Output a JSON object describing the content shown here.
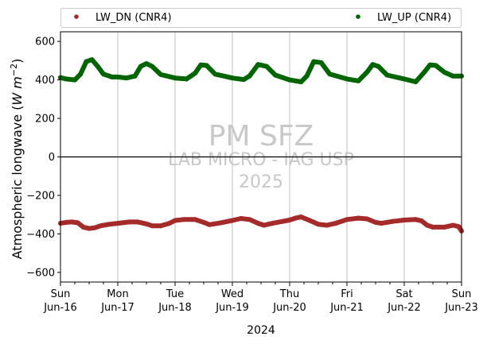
{
  "chart_data": {
    "type": "line",
    "ylabel_main": "Atmospheric longwave (",
    "ylabel_unit": "W m",
    "ylabel_exp": "−2",
    "ylabel_close": ")",
    "xlabel": "2024",
    "ylim": [
      -650,
      650
    ],
    "xlim": [
      0,
      7
    ],
    "yticks": [
      -600,
      -400,
      -200,
      0,
      200,
      400,
      600
    ],
    "ytick_labels": [
      "−600",
      "−400",
      "−200",
      "0",
      "200",
      "400",
      "600"
    ],
    "xticks": [
      {
        "x": 0,
        "day": "Sun",
        "date": "Jun-16"
      },
      {
        "x": 1,
        "day": "Mon",
        "date": "Jun-17"
      },
      {
        "x": 2,
        "day": "Tue",
        "date": "Jun-18"
      },
      {
        "x": 3,
        "day": "Wed",
        "date": "Jun-19"
      },
      {
        "x": 4,
        "day": "Thu",
        "date": "Jun-20"
      },
      {
        "x": 5,
        "day": "Fri",
        "date": "Jun-21"
      },
      {
        "x": 6,
        "day": "Sat",
        "date": "Jun-22"
      },
      {
        "x": 7,
        "day": "Sun",
        "date": "Jun-23"
      }
    ],
    "grid": "vertical",
    "legend_placement": "top, outside",
    "watermark": [
      "PM SFZ",
      "LAB MICRO - IAG USP",
      "2025"
    ],
    "series": [
      {
        "name": "LW_DN (CNR4)",
        "color": "#a52a2a",
        "points": [
          [
            0.0,
            -345
          ],
          [
            0.1,
            -340
          ],
          [
            0.2,
            -338
          ],
          [
            0.3,
            -342
          ],
          [
            0.4,
            -365
          ],
          [
            0.5,
            -372
          ],
          [
            0.6,
            -368
          ],
          [
            0.7,
            -358
          ],
          [
            0.85,
            -350
          ],
          [
            1.0,
            -345
          ],
          [
            1.2,
            -338
          ],
          [
            1.35,
            -338
          ],
          [
            1.5,
            -348
          ],
          [
            1.6,
            -358
          ],
          [
            1.75,
            -358
          ],
          [
            1.9,
            -345
          ],
          [
            2.0,
            -330
          ],
          [
            2.15,
            -325
          ],
          [
            2.35,
            -325
          ],
          [
            2.5,
            -340
          ],
          [
            2.6,
            -352
          ],
          [
            2.8,
            -342
          ],
          [
            3.0,
            -330
          ],
          [
            3.15,
            -320
          ],
          [
            3.3,
            -325
          ],
          [
            3.45,
            -345
          ],
          [
            3.55,
            -355
          ],
          [
            3.7,
            -345
          ],
          [
            4.0,
            -328
          ],
          [
            4.1,
            -318
          ],
          [
            4.2,
            -312
          ],
          [
            4.35,
            -330
          ],
          [
            4.5,
            -350
          ],
          [
            4.65,
            -355
          ],
          [
            4.8,
            -345
          ],
          [
            5.0,
            -325
          ],
          [
            5.2,
            -318
          ],
          [
            5.35,
            -322
          ],
          [
            5.5,
            -340
          ],
          [
            5.6,
            -345
          ],
          [
            5.8,
            -335
          ],
          [
            6.0,
            -328
          ],
          [
            6.2,
            -325
          ],
          [
            6.3,
            -332
          ],
          [
            6.4,
            -355
          ],
          [
            6.5,
            -365
          ],
          [
            6.7,
            -365
          ],
          [
            6.85,
            -355
          ],
          [
            6.95,
            -362
          ],
          [
            7.0,
            -385
          ]
        ]
      },
      {
        "name": "LW_UP (CNR4)",
        "color": "#006400",
        "points": [
          [
            0.0,
            412
          ],
          [
            0.1,
            405
          ],
          [
            0.25,
            400
          ],
          [
            0.35,
            430
          ],
          [
            0.45,
            495
          ],
          [
            0.55,
            505
          ],
          [
            0.65,
            470
          ],
          [
            0.75,
            430
          ],
          [
            0.9,
            415
          ],
          [
            1.0,
            415
          ],
          [
            1.15,
            410
          ],
          [
            1.3,
            420
          ],
          [
            1.4,
            470
          ],
          [
            1.5,
            485
          ],
          [
            1.6,
            470
          ],
          [
            1.75,
            428
          ],
          [
            2.0,
            410
          ],
          [
            2.2,
            405
          ],
          [
            2.35,
            435
          ],
          [
            2.45,
            478
          ],
          [
            2.55,
            475
          ],
          [
            2.7,
            430
          ],
          [
            3.0,
            410
          ],
          [
            3.2,
            402
          ],
          [
            3.3,
            420
          ],
          [
            3.45,
            480
          ],
          [
            3.6,
            470
          ],
          [
            3.75,
            425
          ],
          [
            4.0,
            400
          ],
          [
            4.2,
            390
          ],
          [
            4.3,
            420
          ],
          [
            4.42,
            495
          ],
          [
            4.55,
            490
          ],
          [
            4.7,
            430
          ],
          [
            5.0,
            405
          ],
          [
            5.2,
            395
          ],
          [
            5.35,
            440
          ],
          [
            5.45,
            480
          ],
          [
            5.55,
            470
          ],
          [
            5.7,
            425
          ],
          [
            6.0,
            405
          ],
          [
            6.2,
            390
          ],
          [
            6.35,
            440
          ],
          [
            6.45,
            478
          ],
          [
            6.55,
            475
          ],
          [
            6.7,
            440
          ],
          [
            6.85,
            420
          ],
          [
            7.0,
            420
          ]
        ]
      }
    ]
  }
}
